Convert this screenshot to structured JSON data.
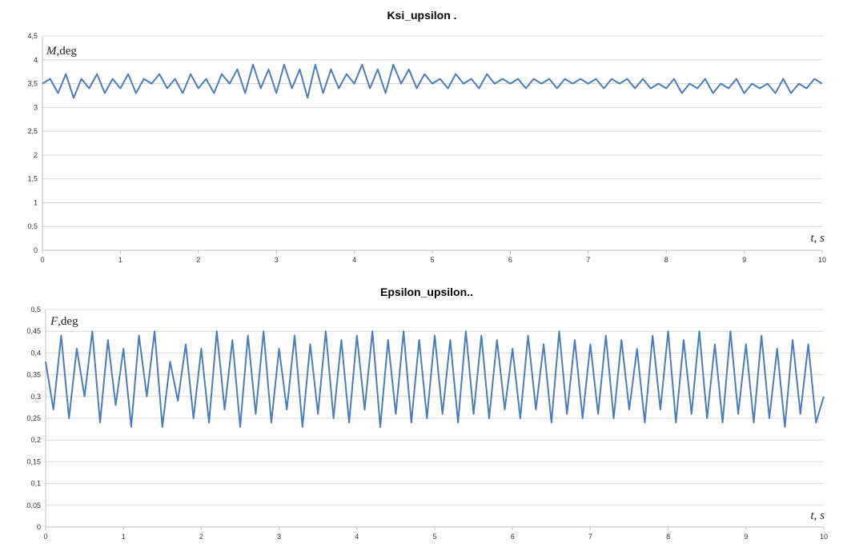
{
  "chart_data": [
    {
      "type": "line",
      "title": "Ksi_upsilon .",
      "ylabel_symbol": "M",
      "ylabel_unit": ",deg",
      "xlabel_symbol": "t",
      "xlabel_unit": ", s",
      "xlim": [
        0,
        10
      ],
      "ylim": [
        0,
        4.5
      ],
      "x_ticks": [
        "0",
        "1",
        "2",
        "3",
        "4",
        "5",
        "6",
        "7",
        "8",
        "9",
        "10"
      ],
      "y_ticks": [
        "0",
        "0,5",
        "1",
        "1,5",
        "2",
        "2,5",
        "3",
        "3,5",
        "4",
        "4,5"
      ],
      "grid": true,
      "color": "#4a7ebb",
      "series": [
        {
          "x": [
            0,
            0.1,
            0.2,
            0.3,
            0.4,
            0.5,
            0.6,
            0.7,
            0.8,
            0.9,
            1,
            1.1,
            1.2,
            1.3,
            1.4,
            1.5,
            1.6,
            1.7,
            1.8,
            1.9,
            2,
            2.1,
            2.2,
            2.3,
            2.4,
            2.5,
            2.6,
            2.7,
            2.8,
            2.9,
            3,
            3.1,
            3.2,
            3.3,
            3.4,
            3.5,
            3.6,
            3.7,
            3.8,
            3.9,
            4,
            4.1,
            4.2,
            4.3,
            4.4,
            4.5,
            4.6,
            4.7,
            4.8,
            4.9,
            5,
            5.1,
            5.2,
            5.3,
            5.4,
            5.5,
            5.6,
            5.7,
            5.8,
            5.9,
            6,
            6.1,
            6.2,
            6.3,
            6.4,
            6.5,
            6.6,
            6.7,
            6.8,
            6.9,
            7,
            7.1,
            7.2,
            7.3,
            7.4,
            7.5,
            7.6,
            7.7,
            7.8,
            7.9,
            8,
            8.1,
            8.2,
            8.3,
            8.4,
            8.5,
            8.6,
            8.7,
            8.8,
            8.9,
            9,
            9.1,
            9.2,
            9.3,
            9.4,
            9.5,
            9.6,
            9.7,
            9.8,
            9.9,
            10
          ],
          "values": [
            3.5,
            3.6,
            3.3,
            3.7,
            3.2,
            3.6,
            3.4,
            3.7,
            3.3,
            3.6,
            3.4,
            3.7,
            3.3,
            3.6,
            3.5,
            3.7,
            3.4,
            3.6,
            3.3,
            3.7,
            3.4,
            3.6,
            3.3,
            3.7,
            3.5,
            3.8,
            3.3,
            3.9,
            3.4,
            3.8,
            3.3,
            3.9,
            3.4,
            3.8,
            3.2,
            3.9,
            3.3,
            3.8,
            3.4,
            3.7,
            3.5,
            3.9,
            3.4,
            3.8,
            3.3,
            3.9,
            3.5,
            3.8,
            3.4,
            3.7,
            3.5,
            3.6,
            3.4,
            3.7,
            3.5,
            3.6,
            3.4,
            3.7,
            3.5,
            3.6,
            3.5,
            3.6,
            3.4,
            3.6,
            3.5,
            3.6,
            3.4,
            3.6,
            3.5,
            3.6,
            3.5,
            3.6,
            3.4,
            3.6,
            3.5,
            3.6,
            3.4,
            3.6,
            3.4,
            3.5,
            3.4,
            3.6,
            3.3,
            3.5,
            3.4,
            3.6,
            3.3,
            3.5,
            3.4,
            3.6,
            3.3,
            3.5,
            3.4,
            3.5,
            3.3,
            3.6,
            3.3,
            3.5,
            3.4,
            3.6,
            3.5
          ]
        }
      ]
    },
    {
      "type": "line",
      "title": "Epsilon_upsilon..",
      "ylabel_symbol": "F",
      "ylabel_unit": ",deg",
      "xlabel_symbol": "t",
      "xlabel_unit": ", s",
      "xlim": [
        0,
        10
      ],
      "ylim": [
        0,
        0.5
      ],
      "x_ticks": [
        "0",
        "1",
        "2",
        "3",
        "4",
        "5",
        "6",
        "7",
        "8",
        "9",
        "10"
      ],
      "y_ticks": [
        "0",
        "0,05",
        "0,1",
        "0,15",
        "0,2",
        "0,25",
        "0,3",
        "0,35",
        "0,4",
        "0,45",
        "0,5"
      ],
      "grid": true,
      "color": "#4a7ebb",
      "series": [
        {
          "x": [
            0,
            0.1,
            0.2,
            0.3,
            0.4,
            0.5,
            0.6,
            0.7,
            0.8,
            0.9,
            1,
            1.1,
            1.2,
            1.3,
            1.4,
            1.5,
            1.6,
            1.7,
            1.8,
            1.9,
            2,
            2.1,
            2.2,
            2.3,
            2.4,
            2.5,
            2.6,
            2.7,
            2.8,
            2.9,
            3,
            3.1,
            3.2,
            3.3,
            3.4,
            3.5,
            3.6,
            3.7,
            3.8,
            3.9,
            4,
            4.1,
            4.2,
            4.3,
            4.4,
            4.5,
            4.6,
            4.7,
            4.8,
            4.9,
            5,
            5.1,
            5.2,
            5.3,
            5.4,
            5.5,
            5.6,
            5.7,
            5.8,
            5.9,
            6,
            6.1,
            6.2,
            6.3,
            6.4,
            6.5,
            6.6,
            6.7,
            6.8,
            6.9,
            7,
            7.1,
            7.2,
            7.3,
            7.4,
            7.5,
            7.6,
            7.7,
            7.8,
            7.9,
            8,
            8.1,
            8.2,
            8.3,
            8.4,
            8.5,
            8.6,
            8.7,
            8.8,
            8.9,
            9,
            9.1,
            9.2,
            9.3,
            9.4,
            9.5,
            9.6,
            9.7,
            9.8,
            9.9,
            10
          ],
          "values": [
            0.38,
            0.27,
            0.44,
            0.25,
            0.41,
            0.3,
            0.45,
            0.24,
            0.43,
            0.28,
            0.41,
            0.23,
            0.44,
            0.3,
            0.45,
            0.23,
            0.38,
            0.29,
            0.42,
            0.25,
            0.41,
            0.24,
            0.45,
            0.27,
            0.43,
            0.23,
            0.44,
            0.26,
            0.45,
            0.24,
            0.41,
            0.27,
            0.44,
            0.23,
            0.42,
            0.26,
            0.45,
            0.25,
            0.43,
            0.24,
            0.44,
            0.27,
            0.45,
            0.23,
            0.43,
            0.26,
            0.45,
            0.24,
            0.43,
            0.25,
            0.44,
            0.26,
            0.43,
            0.24,
            0.45,
            0.26,
            0.44,
            0.25,
            0.43,
            0.27,
            0.41,
            0.25,
            0.44,
            0.27,
            0.42,
            0.24,
            0.45,
            0.26,
            0.43,
            0.25,
            0.42,
            0.26,
            0.44,
            0.25,
            0.43,
            0.27,
            0.41,
            0.24,
            0.44,
            0.27,
            0.45,
            0.24,
            0.43,
            0.26,
            0.45,
            0.25,
            0.42,
            0.24,
            0.45,
            0.26,
            0.42,
            0.24,
            0.44,
            0.25,
            0.41,
            0.23,
            0.43,
            0.26,
            0.42,
            0.24,
            0.3
          ]
        }
      ]
    }
  ]
}
